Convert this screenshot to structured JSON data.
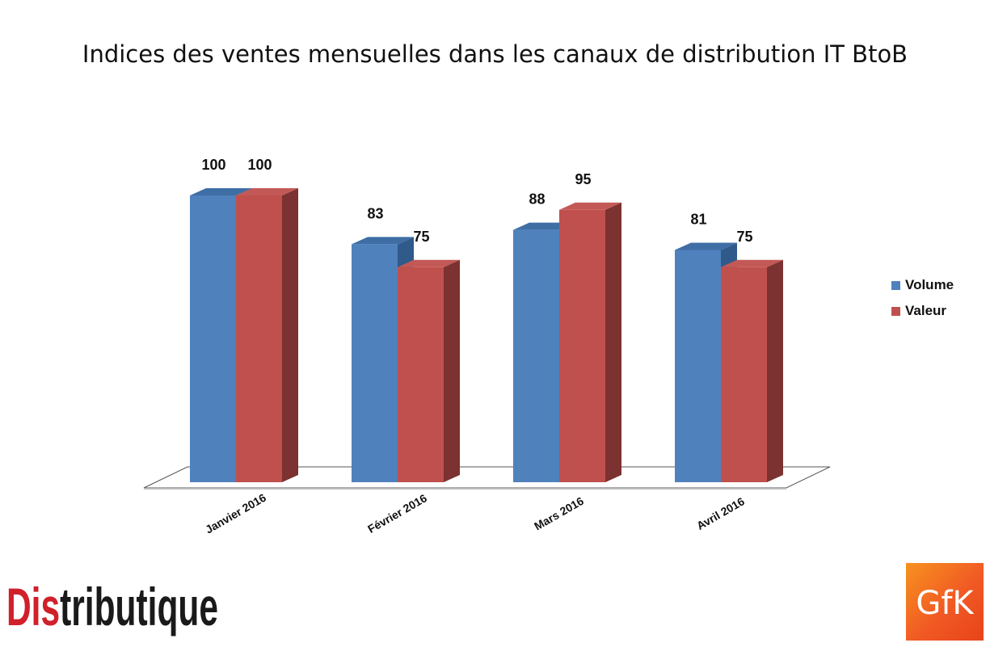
{
  "chart_data": {
    "type": "bar",
    "title": "Indices des ventes mensuelles dans les canaux de distribution IT BtoB",
    "categories": [
      "Janvier 2016",
      "Février 2016",
      "Mars 2016",
      "Avril 2016"
    ],
    "series": [
      {
        "name": "Volume",
        "values": [
          100,
          83,
          88,
          81
        ],
        "color": "#4f81bd",
        "side_color": "#2f5a8a"
      },
      {
        "name": "Valeur",
        "values": [
          100,
          75,
          95,
          75
        ],
        "color": "#c0504d",
        "side_color": "#7b3230"
      }
    ],
    "ylim": [
      0,
      100
    ],
    "grid": false,
    "legend_position": "right",
    "style": "3d-clustered-column"
  },
  "logos": {
    "distributique": {
      "text_red": "Dis",
      "text_black": "tributique",
      "red": "#d0202a",
      "black": "#1a1a1a"
    },
    "gfk": {
      "text": "GfK",
      "color": "#f15a24"
    }
  }
}
